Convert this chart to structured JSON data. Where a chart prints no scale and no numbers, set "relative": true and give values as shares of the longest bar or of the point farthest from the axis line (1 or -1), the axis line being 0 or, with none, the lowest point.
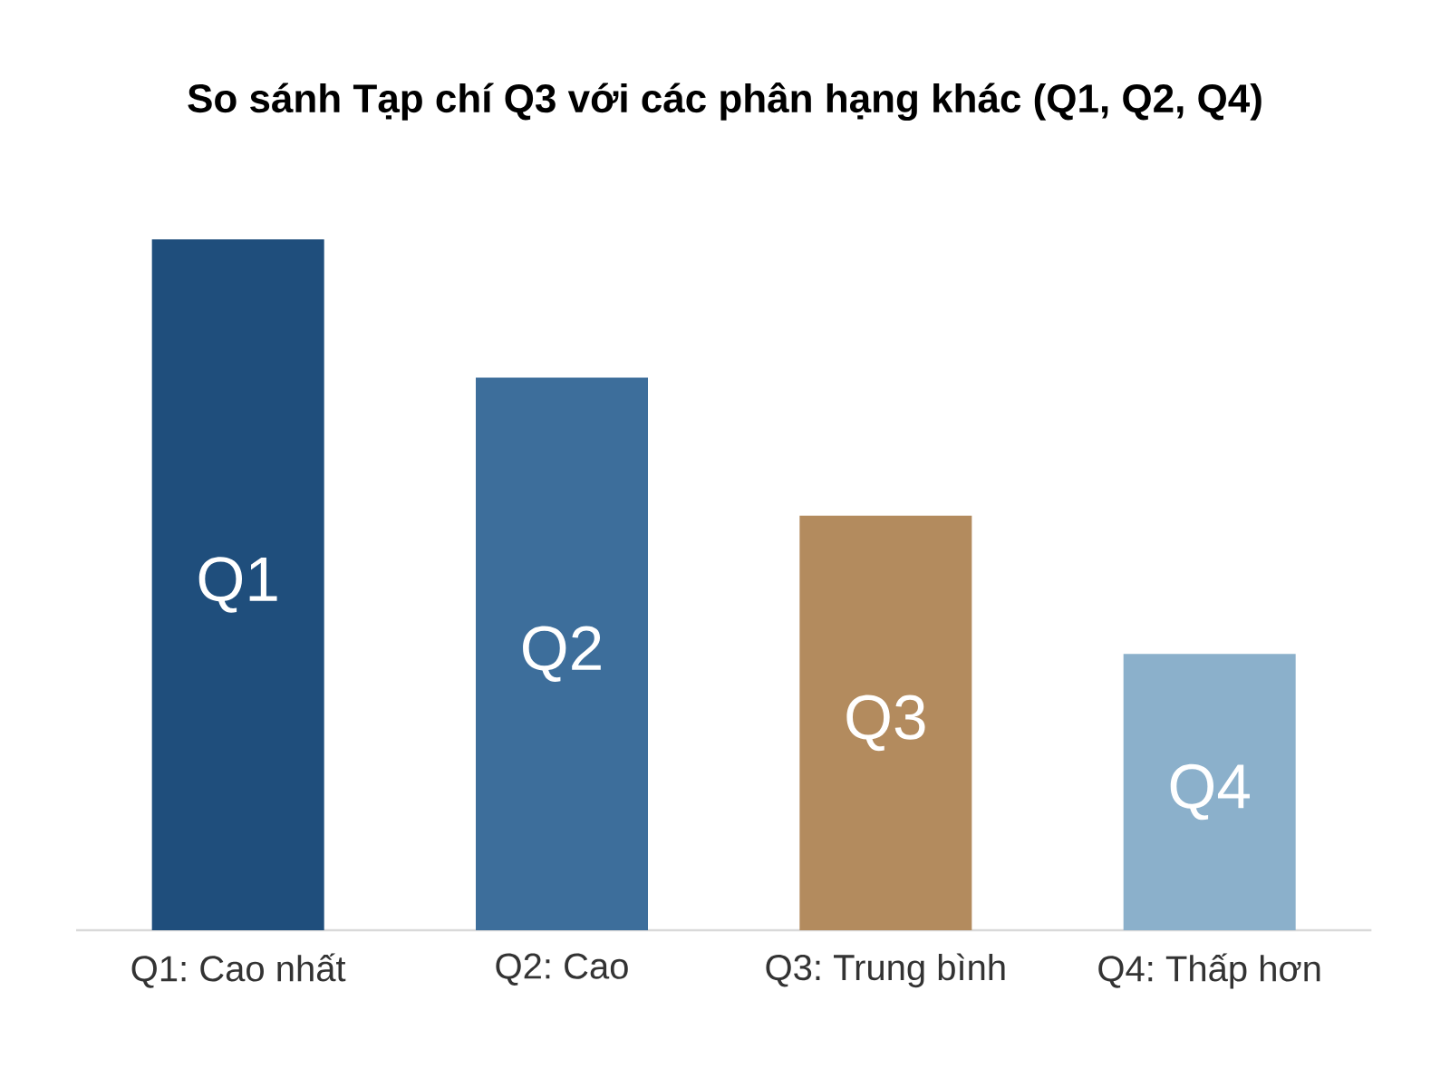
{
  "chart_data": {
    "type": "bar",
    "title": "**So sánh Tạp chí Q3 với các phân hạng khác (Q1, Q2, Q4)**",
    "categories": [
      "Q1: Cao nhất",
      "Q2: Cao",
      "Q3: Trung bình",
      "Q4: Thấp hơn"
    ],
    "values": [
      1,
      0.8,
      0.6,
      0.4
    ],
    "relative": true,
    "colors": [
      "#1f4e7c",
      "#3d6e9b",
      "#b38b5e",
      "#8bb0cb"
    ],
    "annotations": [
      "Q1",
      "Q2",
      "Q3",
      "Q4"
    ]
  }
}
